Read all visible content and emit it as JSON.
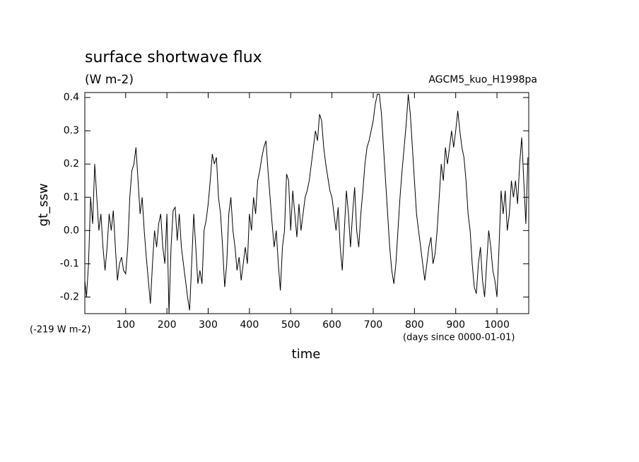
{
  "chart_data": {
    "type": "line",
    "title": "surface shortwave flux",
    "subtitle": "(W m-2)",
    "annotation": "AGCM5_kuo_H1998pa",
    "offset_label": "(-219 W m-2)",
    "x_unit_label": "(days since 0000-01-01)",
    "xlabel": "time",
    "ylabel": "gt_ssw",
    "xlim": [
      1,
      1077
    ],
    "ylim": [
      -0.25,
      0.415
    ],
    "xticks": [
      100,
      200,
      300,
      400,
      500,
      600,
      700,
      800,
      900,
      1000
    ],
    "yticks": [
      -0.2,
      -0.1,
      {
        "value": 0,
        "label": "0.0"
      },
      0.1,
      0.2,
      0.3,
      0.4
    ],
    "x": [
      1,
      5,
      10,
      15,
      20,
      25,
      30,
      35,
      40,
      45,
      50,
      55,
      60,
      65,
      70,
      75,
      80,
      85,
      90,
      95,
      100,
      105,
      110,
      115,
      120,
      125,
      130,
      135,
      140,
      145,
      150,
      155,
      160,
      165,
      170,
      175,
      180,
      185,
      190,
      195,
      200,
      205,
      210,
      215,
      220,
      225,
      230,
      235,
      240,
      245,
      250,
      255,
      260,
      265,
      270,
      275,
      280,
      285,
      290,
      295,
      300,
      305,
      310,
      315,
      320,
      325,
      330,
      335,
      340,
      345,
      350,
      355,
      360,
      365,
      370,
      375,
      380,
      385,
      390,
      395,
      400,
      405,
      410,
      415,
      420,
      425,
      430,
      435,
      440,
      445,
      450,
      455,
      460,
      465,
      470,
      475,
      480,
      485,
      490,
      495,
      500,
      505,
      510,
      515,
      520,
      525,
      530,
      535,
      540,
      545,
      550,
      555,
      560,
      565,
      570,
      575,
      580,
      585,
      590,
      595,
      600,
      605,
      610,
      615,
      620,
      625,
      630,
      635,
      640,
      645,
      650,
      655,
      660,
      665,
      670,
      675,
      680,
      685,
      690,
      695,
      700,
      705,
      710,
      715,
      720,
      725,
      730,
      735,
      740,
      745,
      750,
      755,
      760,
      765,
      770,
      775,
      780,
      785,
      790,
      795,
      800,
      805,
      810,
      815,
      820,
      825,
      830,
      835,
      840,
      845,
      850,
      855,
      860,
      865,
      870,
      875,
      880,
      885,
      890,
      895,
      900,
      905,
      910,
      915,
      920,
      925,
      930,
      935,
      940,
      945,
      950,
      955,
      960,
      965,
      970,
      975,
      980,
      985,
      990,
      995,
      1000,
      1005,
      1010,
      1015,
      1020,
      1025,
      1030,
      1035,
      1040,
      1045,
      1050,
      1055,
      1060,
      1065,
      1070,
      1075
    ],
    "series": [
      {
        "color": "#000000",
        "values": [
          -0.15,
          -0.2,
          -0.1,
          0.1,
          0.02,
          0.2,
          0.1,
          0.0,
          0.05,
          -0.05,
          -0.12,
          -0.05,
          0.05,
          0.0,
          0.06,
          -0.05,
          -0.15,
          -0.1,
          -0.08,
          -0.12,
          -0.13,
          -0.05,
          0.1,
          0.18,
          0.2,
          0.25,
          0.15,
          0.05,
          0.1,
          0.0,
          -0.08,
          -0.15,
          -0.22,
          -0.1,
          0.0,
          -0.05,
          0.02,
          0.05,
          -0.05,
          -0.1,
          0.05,
          -0.25,
          -0.05,
          0.06,
          0.07,
          -0.03,
          0.05,
          -0.05,
          -0.1,
          -0.15,
          -0.2,
          -0.24,
          -0.1,
          0.05,
          -0.05,
          -0.16,
          -0.12,
          -0.16,
          0.0,
          0.03,
          0.08,
          0.15,
          0.23,
          0.2,
          0.22,
          0.1,
          0.05,
          -0.05,
          -0.17,
          -0.1,
          0.05,
          0.1,
          0.0,
          -0.05,
          -0.12,
          -0.08,
          -0.15,
          -0.1,
          -0.05,
          -0.1,
          0.05,
          0.0,
          0.1,
          0.05,
          0.15,
          0.18,
          0.22,
          0.25,
          0.27,
          0.18,
          0.1,
          0.02,
          -0.05,
          0.0,
          -0.1,
          -0.18,
          -0.05,
          0.0,
          0.17,
          0.15,
          0.0,
          0.12,
          0.05,
          -0.02,
          0.08,
          0.0,
          0.05,
          0.1,
          0.12,
          0.15,
          0.2,
          0.25,
          0.3,
          0.27,
          0.35,
          0.33,
          0.25,
          0.2,
          0.16,
          0.12,
          0.1,
          0.05,
          0.0,
          0.07,
          -0.05,
          -0.12,
          0.0,
          0.12,
          0.05,
          -0.05,
          0.05,
          0.13,
          0.0,
          -0.05,
          0.05,
          0.12,
          0.2,
          0.25,
          0.27,
          0.3,
          0.33,
          0.38,
          0.41,
          0.41,
          0.35,
          0.25,
          0.15,
          0.05,
          -0.05,
          -0.12,
          -0.16,
          -0.1,
          0.0,
          0.1,
          0.18,
          0.25,
          0.32,
          0.41,
          0.35,
          0.25,
          0.15,
          0.05,
          0.0,
          -0.05,
          -0.1,
          -0.15,
          -0.1,
          -0.05,
          -0.02,
          -0.1,
          -0.07,
          0.0,
          0.1,
          0.2,
          0.15,
          0.25,
          0.2,
          0.25,
          0.3,
          0.25,
          0.3,
          0.36,
          0.3,
          0.25,
          0.22,
          0.15,
          0.05,
          0.0,
          -0.1,
          -0.17,
          -0.19,
          -0.1,
          -0.05,
          -0.15,
          -0.2,
          -0.1,
          0.0,
          -0.05,
          -0.12,
          -0.15,
          -0.2,
          -0.05,
          0.12,
          0.05,
          0.12,
          0.0,
          0.05,
          0.15,
          0.1,
          0.15,
          0.08,
          0.2,
          0.28,
          0.15,
          0.02,
          0.22
        ]
      }
    ]
  }
}
